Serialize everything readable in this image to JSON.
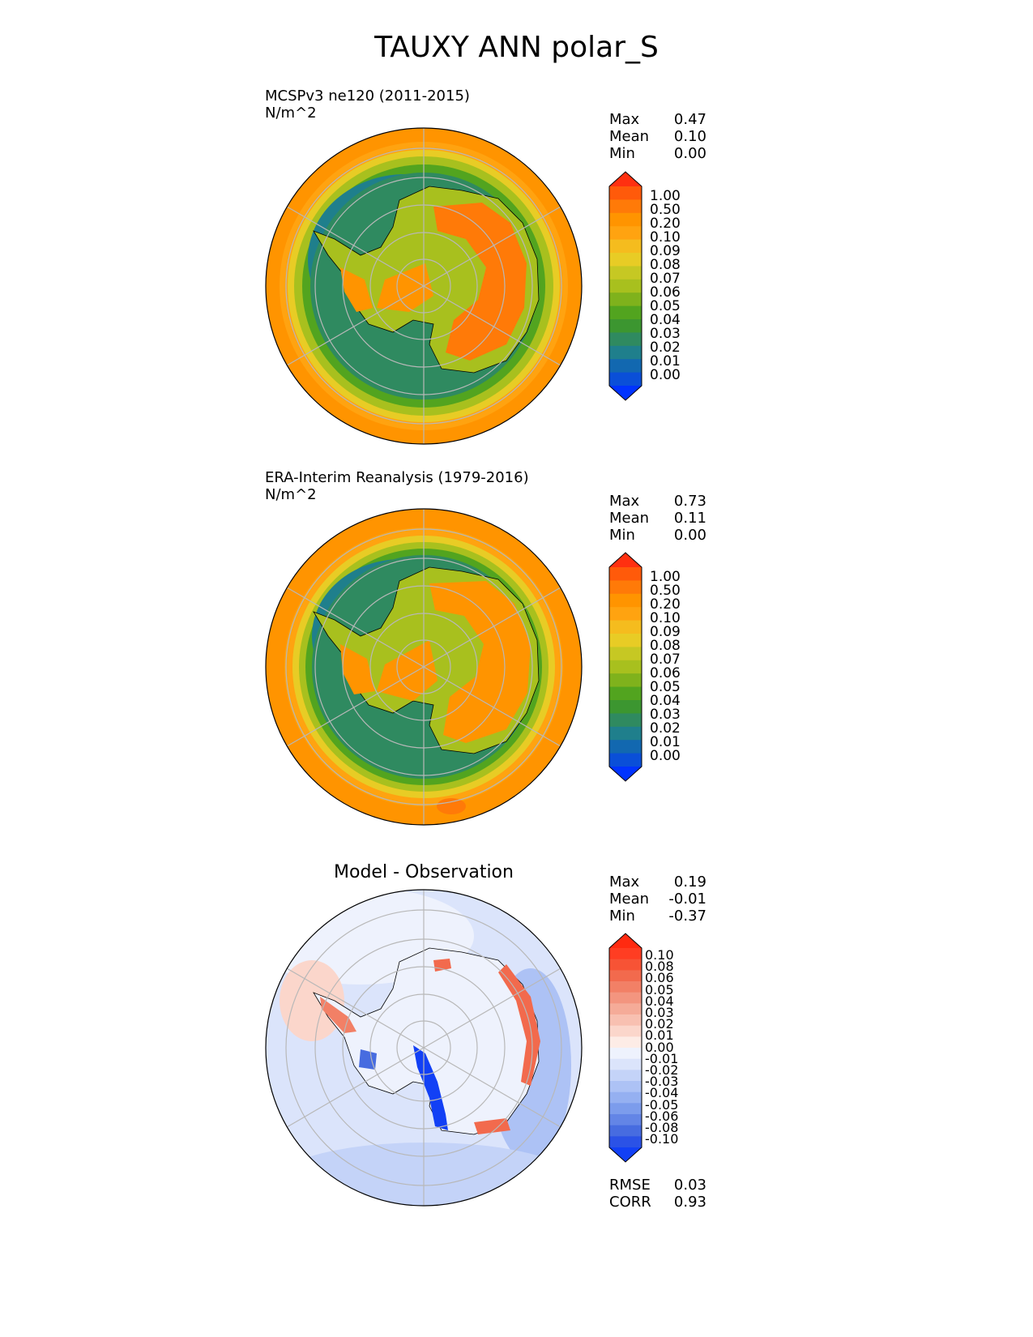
{
  "figure_title": "TAUXY ANN polar_S",
  "panels": [
    {
      "title_line1": "MCSPv3 ne120 (2011-2015)",
      "title_line2": "N/m^2",
      "stats": [
        {
          "label": "Max",
          "value": "0.47"
        },
        {
          "label": "Mean",
          "value": "0.10"
        },
        {
          "label": "Min",
          "value": "0.00"
        }
      ]
    },
    {
      "title_line1": "ERA-Interim Reanalysis (1979-2016)",
      "title_line2": "N/m^2",
      "stats": [
        {
          "label": "Max",
          "value": "0.73"
        },
        {
          "label": "Mean",
          "value": "0.11"
        },
        {
          "label": "Min",
          "value": "0.00"
        }
      ]
    },
    {
      "title": "Model - Observation",
      "stats": [
        {
          "label": "Max",
          "value": "0.19"
        },
        {
          "label": "Mean",
          "value": "-0.01"
        },
        {
          "label": "Min",
          "value": "-0.37"
        }
      ],
      "metrics": [
        {
          "label": "RMSE",
          "value": "0.03"
        },
        {
          "label": "CORR",
          "value": "0.93"
        }
      ]
    }
  ],
  "colorbars": {
    "abs": {
      "labels": [
        "1.00",
        "0.50",
        "0.20",
        "0.10",
        "0.09",
        "0.08",
        "0.07",
        "0.06",
        "0.05",
        "0.04",
        "0.03",
        "0.02",
        "0.01",
        "0.00"
      ],
      "colors_top_to_bottom": [
        "#ff3010",
        "#ff5a0a",
        "#ff7a08",
        "#ff9400",
        "#ffa310",
        "#f5bc1e",
        "#e8cc25",
        "#c6c823",
        "#a8c01e",
        "#7fb21c",
        "#52a41f",
        "#3c9630",
        "#2f8a60",
        "#1f7f8c",
        "#1268b0",
        "#0a4fd8",
        "#0033ff"
      ]
    },
    "diff": {
      "labels": [
        "0.10",
        "0.08",
        "0.06",
        "0.05",
        "0.04",
        "0.03",
        "0.02",
        "0.01",
        "0.00",
        "-0.01",
        "-0.02",
        "-0.03",
        "-0.04",
        "-0.05",
        "-0.06",
        "-0.08",
        "-0.10"
      ],
      "colors_top_to_bottom": [
        "#ff2a10",
        "#ff3d22",
        "#f75335",
        "#f26a4d",
        "#f28066",
        "#f3957f",
        "#f5ab98",
        "#f8c0b1",
        "#fbd6cb",
        "#fdece6",
        "#eef2fd",
        "#dbe4fb",
        "#c4d3f8",
        "#adc2f5",
        "#95b0f1",
        "#7c9cec",
        "#6385e6",
        "#476ce0",
        "#2b52e6",
        "#1240f5"
      ]
    }
  },
  "map_colors": {
    "ocean_abs": "#ff9400",
    "ring_abs": "#2f8a60",
    "ring_band": "#1f7f8c",
    "land_abs": "#a8c01e",
    "land_high": "#ff7a08",
    "diff_base": "#e6ecfb",
    "diff_blue": "#adc2f5",
    "diff_red": "#f26a4d",
    "diff_strong_blue": "#1240f5",
    "grid": "#b8b8b8"
  }
}
